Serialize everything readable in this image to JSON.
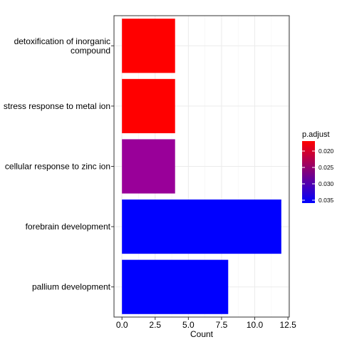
{
  "chart_data": {
    "type": "bar",
    "orientation": "horizontal",
    "categories": [
      "detoxification of inorganic compound",
      "stress response to metal ion",
      "cellular response to zinc ion",
      "forebrain development",
      "pallium development"
    ],
    "category_label_lines": [
      [
        "detoxification of inorganic",
        "compound"
      ],
      [
        "stress response to metal ion"
      ],
      [
        "cellular response to zinc ion"
      ],
      [
        "forebrain development"
      ],
      [
        "pallium development"
      ]
    ],
    "values": [
      4,
      4,
      4,
      12,
      8
    ],
    "bar_colors": [
      "#ff0000",
      "#ff0000",
      "#990099",
      "#0000ff",
      "#0000ff"
    ],
    "xlabel": "Count",
    "ylabel": "",
    "xlim": [
      -0.6,
      12.6
    ],
    "xticks": [
      0,
      2.5,
      5,
      7.5,
      10,
      12.5
    ],
    "xtick_labels": [
      "0.0",
      "2.5",
      "5.0",
      "7.5",
      "10.0",
      "12.5"
    ],
    "grid": true,
    "legend": {
      "title": "p.adjust",
      "placement": "right",
      "colors_top_to_bottom": [
        "#ff0000",
        "#0000ff"
      ],
      "ticks": [
        "0.020",
        "0.025",
        "0.030",
        "0.035"
      ]
    }
  }
}
